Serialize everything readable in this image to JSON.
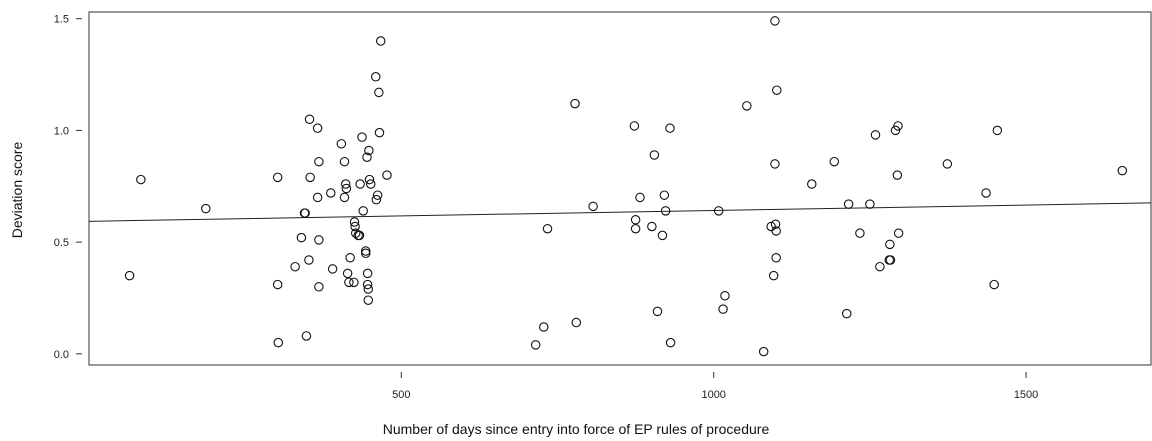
{
  "chart_data": {
    "type": "scatter",
    "title": "",
    "xlabel": "Number of days since entry into force of EP rules of procedure",
    "ylabel": "Deviation score",
    "xlim": [
      0,
      1700
    ],
    "ylim": [
      -0.05,
      1.53
    ],
    "xticks": [
      500,
      1000,
      1500
    ],
    "yticks": [
      0.0,
      0.5,
      1.0,
      1.5
    ],
    "xtick_labels": [
      "500",
      "1000",
      "1500"
    ],
    "ytick_labels": [
      "0.0",
      "0.5",
      "1.0",
      "1.5"
    ],
    "grid": false,
    "legend": "none",
    "regression_line": {
      "intercept": 0.593,
      "slope": 4.85e-05
    },
    "points": [
      {
        "x": 65,
        "y": 0.35
      },
      {
        "x": 83,
        "y": 0.78
      },
      {
        "x": 187,
        "y": 0.65
      },
      {
        "x": 302,
        "y": 0.31
      },
      {
        "x": 302,
        "y": 0.79
      },
      {
        "x": 303,
        "y": 0.05
      },
      {
        "x": 330,
        "y": 0.39
      },
      {
        "x": 340,
        "y": 0.52
      },
      {
        "x": 345,
        "y": 0.63
      },
      {
        "x": 346,
        "y": 0.63
      },
      {
        "x": 348,
        "y": 0.08
      },
      {
        "x": 352,
        "y": 0.42
      },
      {
        "x": 353,
        "y": 1.05
      },
      {
        "x": 354,
        "y": 0.79
      },
      {
        "x": 366,
        "y": 1.01
      },
      {
        "x": 366,
        "y": 0.7
      },
      {
        "x": 368,
        "y": 0.51
      },
      {
        "x": 368,
        "y": 0.3
      },
      {
        "x": 368,
        "y": 0.86
      },
      {
        "x": 387,
        "y": 0.72
      },
      {
        "x": 390,
        "y": 0.38
      },
      {
        "x": 404,
        "y": 0.94
      },
      {
        "x": 409,
        "y": 0.86
      },
      {
        "x": 409,
        "y": 0.7
      },
      {
        "x": 411,
        "y": 0.76
      },
      {
        "x": 412,
        "y": 0.74
      },
      {
        "x": 414,
        "y": 0.36
      },
      {
        "x": 416,
        "y": 0.32
      },
      {
        "x": 418,
        "y": 0.43
      },
      {
        "x": 424,
        "y": 0.32
      },
      {
        "x": 425,
        "y": 0.59
      },
      {
        "x": 426,
        "y": 0.57
      },
      {
        "x": 427,
        "y": 0.54
      },
      {
        "x": 431,
        "y": 0.53
      },
      {
        "x": 433,
        "y": 0.53
      },
      {
        "x": 434,
        "y": 0.76
      },
      {
        "x": 437,
        "y": 0.97
      },
      {
        "x": 439,
        "y": 0.64
      },
      {
        "x": 443,
        "y": 0.46
      },
      {
        "x": 443,
        "y": 0.45
      },
      {
        "x": 445,
        "y": 0.88
      },
      {
        "x": 446,
        "y": 0.36
      },
      {
        "x": 446,
        "y": 0.31
      },
      {
        "x": 447,
        "y": 0.29
      },
      {
        "x": 447,
        "y": 0.24
      },
      {
        "x": 448,
        "y": 0.91
      },
      {
        "x": 449,
        "y": 0.78
      },
      {
        "x": 451,
        "y": 0.76
      },
      {
        "x": 459,
        "y": 1.24
      },
      {
        "x": 460,
        "y": 0.69
      },
      {
        "x": 462,
        "y": 0.71
      },
      {
        "x": 464,
        "y": 1.17
      },
      {
        "x": 465,
        "y": 0.99
      },
      {
        "x": 467,
        "y": 1.4
      },
      {
        "x": 477,
        "y": 0.8
      },
      {
        "x": 715,
        "y": 0.04
      },
      {
        "x": 728,
        "y": 0.12
      },
      {
        "x": 734,
        "y": 0.56
      },
      {
        "x": 778,
        "y": 1.12
      },
      {
        "x": 780,
        "y": 0.14
      },
      {
        "x": 807,
        "y": 0.66
      },
      {
        "x": 873,
        "y": 1.02
      },
      {
        "x": 875,
        "y": 0.56
      },
      {
        "x": 875,
        "y": 0.6
      },
      {
        "x": 882,
        "y": 0.7
      },
      {
        "x": 901,
        "y": 0.57
      },
      {
        "x": 905,
        "y": 0.89
      },
      {
        "x": 910,
        "y": 0.19
      },
      {
        "x": 918,
        "y": 0.53
      },
      {
        "x": 921,
        "y": 0.71
      },
      {
        "x": 923,
        "y": 0.64
      },
      {
        "x": 930,
        "y": 1.01
      },
      {
        "x": 931,
        "y": 0.05
      },
      {
        "x": 1008,
        "y": 0.64
      },
      {
        "x": 1015,
        "y": 0.2
      },
      {
        "x": 1018,
        "y": 0.26
      },
      {
        "x": 1053,
        "y": 1.11
      },
      {
        "x": 1080,
        "y": 0.01
      },
      {
        "x": 1092,
        "y": 0.57
      },
      {
        "x": 1096,
        "y": 0.35
      },
      {
        "x": 1098,
        "y": 1.49
      },
      {
        "x": 1098,
        "y": 0.85
      },
      {
        "x": 1099,
        "y": 0.58
      },
      {
        "x": 1100,
        "y": 0.55
      },
      {
        "x": 1100,
        "y": 0.43
      },
      {
        "x": 1101,
        "y": 1.18
      },
      {
        "x": 1157,
        "y": 0.76
      },
      {
        "x": 1193,
        "y": 0.86
      },
      {
        "x": 1213,
        "y": 0.18
      },
      {
        "x": 1216,
        "y": 0.67
      },
      {
        "x": 1234,
        "y": 0.54
      },
      {
        "x": 1250,
        "y": 0.67
      },
      {
        "x": 1259,
        "y": 0.98
      },
      {
        "x": 1266,
        "y": 0.39
      },
      {
        "x": 1281,
        "y": 0.42
      },
      {
        "x": 1282,
        "y": 0.49
      },
      {
        "x": 1283,
        "y": 0.42
      },
      {
        "x": 1291,
        "y": 1.0
      },
      {
        "x": 1294,
        "y": 0.8
      },
      {
        "x": 1295,
        "y": 1.02
      },
      {
        "x": 1296,
        "y": 0.54
      },
      {
        "x": 1374,
        "y": 0.85
      },
      {
        "x": 1436,
        "y": 0.72
      },
      {
        "x": 1449,
        "y": 0.31
      },
      {
        "x": 1454,
        "y": 1.0
      },
      {
        "x": 1654,
        "y": 0.82
      }
    ]
  }
}
